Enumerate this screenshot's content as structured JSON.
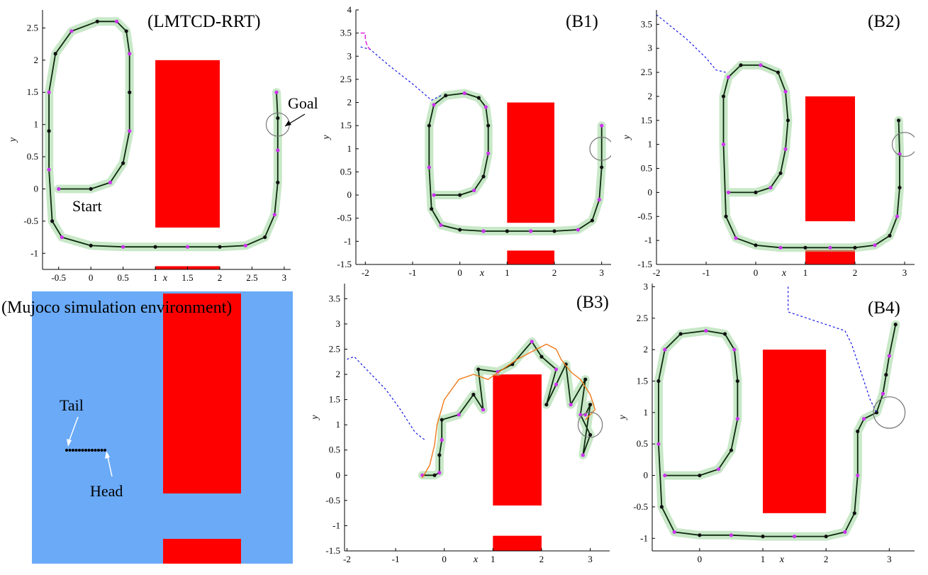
{
  "figure": {
    "mujoco_title": "(Mujoco simulation environment)",
    "tail_label": "Tail",
    "head_label": "Head"
  },
  "chart_data": [
    {
      "id": "lmtcd",
      "type": "line",
      "title": "(LMTCD-RRT)",
      "xlabel": "x",
      "ylabel": "y",
      "xlim": [
        -0.75,
        3.1
      ],
      "ylim": [
        -1.25,
        2.78
      ],
      "xticks": [
        "-0.5",
        "0",
        "0.5",
        "1",
        "1.5",
        "2",
        "2.5",
        "3"
      ],
      "yticks": [
        "-1",
        "-0.5",
        "0",
        "0.5",
        "1",
        "1.5",
        "2",
        "2.5"
      ],
      "xtick_values": [
        -0.5,
        0,
        0.5,
        1,
        1.5,
        2,
        2.5,
        3
      ],
      "ytick_values": [
        -1,
        -0.5,
        0,
        0.5,
        1,
        1.5,
        2,
        2.5
      ],
      "start_label": "Start",
      "goal_label": "Goal",
      "goal": {
        "x": 2.9,
        "y": 1.0,
        "r": 0.18
      },
      "obstacles": [
        {
          "x0": 1.0,
          "x1": 2.0,
          "y0": -0.6,
          "y1": 2.0
        },
        {
          "x0": 1.0,
          "x1": 2.0,
          "y0": -1.5,
          "y1": -1.2
        }
      ],
      "series": [
        {
          "role": "trajectory",
          "x": [
            -0.5,
            0,
            0.3,
            0.5,
            0.6,
            0.6,
            0.6,
            0.55,
            0.4,
            0.1,
            -0.3,
            -0.55,
            -0.65,
            -0.65,
            -0.65,
            -0.6,
            -0.45,
            0,
            0.5,
            1,
            1.5,
            2,
            2.4,
            2.7,
            2.85,
            2.9,
            2.9,
            2.9,
            2.88
          ],
          "y": [
            0,
            0,
            0.1,
            0.4,
            0.9,
            1.5,
            2.1,
            2.45,
            2.6,
            2.6,
            2.45,
            2.1,
            1.5,
            0.9,
            0.3,
            -0.5,
            -0.75,
            -0.88,
            -0.9,
            -0.9,
            -0.9,
            -0.9,
            -0.88,
            -0.75,
            -0.4,
            0.1,
            0.6,
            1.1,
            1.5
          ]
        }
      ]
    },
    {
      "id": "b1",
      "type": "line",
      "title": "(B1)",
      "xlabel": "x",
      "ylabel": "y",
      "xlim": [
        -2.2,
        3.2
      ],
      "ylim": [
        -1.5,
        4.0
      ],
      "xticks": [
        "-2",
        "-1",
        "0",
        "1",
        "2",
        "3"
      ],
      "yticks": [
        "-1.5",
        "-1",
        "-0.5",
        "0",
        "0.5",
        "1",
        "1.5",
        "2",
        "2.5",
        "3",
        "3.5",
        "4"
      ],
      "xtick_values": [
        -2,
        -1,
        0,
        1,
        2,
        3
      ],
      "ytick_values": [
        -1.5,
        -1,
        -0.5,
        0,
        0.5,
        1,
        1.5,
        2,
        2.5,
        3,
        3.5,
        4
      ],
      "goal": {
        "x": 3.0,
        "y": 1.0,
        "r": 0.25
      },
      "obstacles": [
        {
          "x0": 1.0,
          "x1": 2.0,
          "y0": -0.6,
          "y1": 2.0
        },
        {
          "x0": 1.0,
          "x1": 2.0,
          "y0": -1.5,
          "y1": -1.2
        }
      ],
      "series": [
        {
          "role": "trajectory",
          "x": [
            -0.55,
            0,
            0.3,
            0.5,
            0.6,
            0.6,
            0.55,
            0.4,
            0.1,
            -0.3,
            -0.55,
            -0.65,
            -0.65,
            -0.6,
            -0.4,
            0,
            0.5,
            1,
            1.5,
            2,
            2.5,
            2.8,
            2.95,
            3,
            3.0
          ],
          "y": [
            0,
            0,
            0.1,
            0.4,
            0.9,
            1.5,
            1.9,
            2.1,
            2.2,
            2.15,
            1.95,
            1.5,
            0.6,
            -0.3,
            -0.65,
            -0.75,
            -0.78,
            -0.78,
            -0.78,
            -0.78,
            -0.75,
            -0.55,
            -0.1,
            0.6,
            1.5
          ]
        },
        {
          "role": "reference",
          "x": [
            -2.1,
            -1.9,
            -1.5,
            -1.0,
            -0.6,
            -0.4
          ],
          "y": [
            3.2,
            3.15,
            2.8,
            2.4,
            2.05,
            2.15
          ]
        },
        {
          "role": "prediction",
          "x": [
            -2.1,
            -2.0,
            -2.0,
            -1.95,
            -1.9
          ],
          "y": [
            3.5,
            3.5,
            3.35,
            3.2,
            3.15
          ]
        }
      ]
    },
    {
      "id": "b2",
      "type": "line",
      "title": "(B2)",
      "xlabel": "x",
      "ylabel": "y",
      "xlim": [
        -2.0,
        3.2
      ],
      "ylim": [
        -1.5,
        3.8
      ],
      "xticks": [
        "-2",
        "-1",
        "0",
        "1",
        "2",
        "3"
      ],
      "yticks": [
        "-1.5",
        "-1",
        "-0.5",
        "0",
        "0.5",
        "1",
        "1.5",
        "2",
        "2.5",
        "3",
        "3.5"
      ],
      "xtick_values": [
        -2,
        -1,
        0,
        1,
        2,
        3
      ],
      "ytick_values": [
        -1.5,
        -1,
        -0.5,
        0,
        0.5,
        1,
        1.5,
        2,
        2.5,
        3,
        3.5
      ],
      "goal": {
        "x": 3.0,
        "y": 1.0,
        "r": 0.25
      },
      "obstacles": [
        {
          "x0": 1.0,
          "x1": 2.0,
          "y0": -0.6,
          "y1": 2.0
        },
        {
          "x0": 1.0,
          "x1": 2.0,
          "y0": -1.5,
          "y1": -1.2
        }
      ],
      "series": [
        {
          "role": "trajectory",
          "x": [
            -0.55,
            0,
            0.3,
            0.5,
            0.6,
            0.65,
            0.6,
            0.45,
            0.1,
            -0.3,
            -0.55,
            -0.65,
            -0.65,
            -0.6,
            -0.4,
            0,
            0.5,
            1,
            1.5,
            2,
            2.4,
            2.7,
            2.85,
            2.9,
            2.9,
            2.88
          ],
          "y": [
            0,
            0,
            0.1,
            0.4,
            0.9,
            1.5,
            2.1,
            2.5,
            2.65,
            2.65,
            2.4,
            2.0,
            1.0,
            -0.5,
            -0.95,
            -1.1,
            -1.15,
            -1.15,
            -1.15,
            -1.15,
            -1.1,
            -0.9,
            -0.5,
            0.1,
            0.8,
            1.5
          ]
        },
        {
          "role": "reference",
          "x": [
            -2.0,
            -1.7,
            -1.4,
            -1.0,
            -0.8,
            -0.6
          ],
          "y": [
            3.7,
            3.45,
            3.2,
            2.8,
            2.55,
            2.5
          ]
        }
      ]
    },
    {
      "id": "b3",
      "type": "line",
      "title": "(B3)",
      "xlabel": "x",
      "ylabel": "y",
      "xlim": [
        -2.05,
        3.4
      ],
      "ylim": [
        -1.5,
        3.8
      ],
      "xticks": [
        "-2",
        "-1",
        "0",
        "1",
        "2",
        "3"
      ],
      "yticks": [
        "-1.5",
        "-1",
        "-0.5",
        "0",
        "0.5",
        "1",
        "1.5",
        "2",
        "2.5",
        "3",
        "3.5"
      ],
      "xtick_values": [
        -2,
        -1,
        0,
        1,
        2,
        3
      ],
      "ytick_values": [
        -1.5,
        -1,
        -0.5,
        0,
        0.5,
        1,
        1.5,
        2,
        2.5,
        3,
        3.5
      ],
      "goal": {
        "x": 3.0,
        "y": 1.0,
        "r": 0.25
      },
      "obstacles": [
        {
          "x0": 1.0,
          "x1": 2.0,
          "y0": -0.6,
          "y1": 2.0
        },
        {
          "x0": 1.0,
          "x1": 2.0,
          "y0": -1.5,
          "y1": -1.2
        }
      ],
      "series": [
        {
          "role": "trajectory",
          "x": [
            -0.45,
            -0.2,
            -0.1,
            -0.1,
            -0.05,
            -0.05,
            0.3,
            0.6,
            0.8,
            0.7,
            1.1,
            1.4,
            1.8,
            2.0,
            2.3,
            2.1,
            2.3,
            2.5,
            2.6,
            2.9,
            2.8,
            3.0,
            2.85,
            3.0,
            2.9
          ],
          "y": [
            0,
            0,
            0.05,
            0.4,
            0.7,
            1.1,
            1.2,
            1.6,
            1.3,
            2.1,
            2.05,
            2.2,
            2.65,
            2.35,
            2.1,
            1.4,
            1.8,
            2.2,
            1.4,
            1.9,
            1.2,
            0.8,
            0.4,
            1.4,
            1.2
          ]
        },
        {
          "role": "prediction_orange",
          "x": [
            -0.45,
            -0.3,
            -0.2,
            -0.15,
            0.0,
            0.3,
            0.6,
            0.9,
            1.2,
            1.5,
            1.8,
            2.1,
            2.3,
            2.4,
            2.6,
            2.8,
            3.0,
            3.1,
            2.9
          ],
          "y": [
            -0.05,
            0.2,
            0.6,
            1.0,
            1.5,
            1.9,
            2.0,
            1.9,
            2.1,
            2.3,
            2.45,
            2.6,
            2.5,
            2.3,
            2.05,
            1.9,
            1.6,
            1.3,
            1.1
          ]
        },
        {
          "role": "reference",
          "x": [
            -2.0,
            -1.85,
            -1.5,
            -1.2,
            -0.9,
            -0.6,
            -0.4
          ],
          "y": [
            2.3,
            2.35,
            2.0,
            1.7,
            1.3,
            0.85,
            0.7
          ]
        }
      ]
    },
    {
      "id": "b4",
      "type": "line",
      "title": "(B4)",
      "xlabel": "x",
      "ylabel": "y",
      "xlim": [
        -0.75,
        3.4
      ],
      "ylim": [
        -1.2,
        3.05
      ],
      "xticks": [
        "0",
        "1",
        "2",
        "3"
      ],
      "yticks": [
        "-1",
        "-0.5",
        "0",
        "0.5",
        "1",
        "1.5",
        "2",
        "2.5",
        "3"
      ],
      "xtick_values": [
        0,
        1,
        2,
        3
      ],
      "ytick_values": [
        -1,
        -0.5,
        0,
        0.5,
        1,
        1.5,
        2,
        2.5,
        3
      ],
      "goal": {
        "x": 3.0,
        "y": 1.0,
        "r": 0.25
      },
      "obstacles": [
        {
          "x0": 1.0,
          "x1": 2.0,
          "y0": -0.6,
          "y1": 2.0
        },
        {
          "x0": 1.0,
          "x1": 2.0,
          "y0": -1.3,
          "y1": -1.2
        }
      ],
      "series": [
        {
          "role": "trajectory",
          "x": [
            -0.55,
            0,
            0.3,
            0.5,
            0.6,
            0.6,
            0.55,
            0.4,
            0.1,
            -0.3,
            -0.55,
            -0.65,
            -0.65,
            -0.6,
            -0.4,
            0,
            0.5,
            1,
            1.5,
            2,
            2.3,
            2.45,
            2.5,
            2.5,
            2.6,
            2.8,
            2.9,
            2.95,
            3.0,
            3.1
          ],
          "y": [
            0,
            0,
            0.1,
            0.4,
            0.9,
            1.5,
            2.0,
            2.25,
            2.3,
            2.25,
            2.0,
            1.5,
            0.5,
            -0.5,
            -0.9,
            -0.95,
            -0.95,
            -0.97,
            -0.97,
            -0.97,
            -0.9,
            -0.6,
            0,
            0.7,
            0.9,
            1.0,
            1.3,
            1.6,
            1.9,
            2.4
          ]
        },
        {
          "role": "reference",
          "x": [
            1.4,
            1.4,
            1.7,
            2.0,
            2.3,
            2.4,
            2.5,
            2.6,
            2.7,
            2.8
          ],
          "y": [
            3.0,
            2.6,
            2.5,
            2.4,
            2.3,
            2.1,
            1.8,
            1.5,
            1.2,
            1.0
          ]
        }
      ]
    }
  ]
}
